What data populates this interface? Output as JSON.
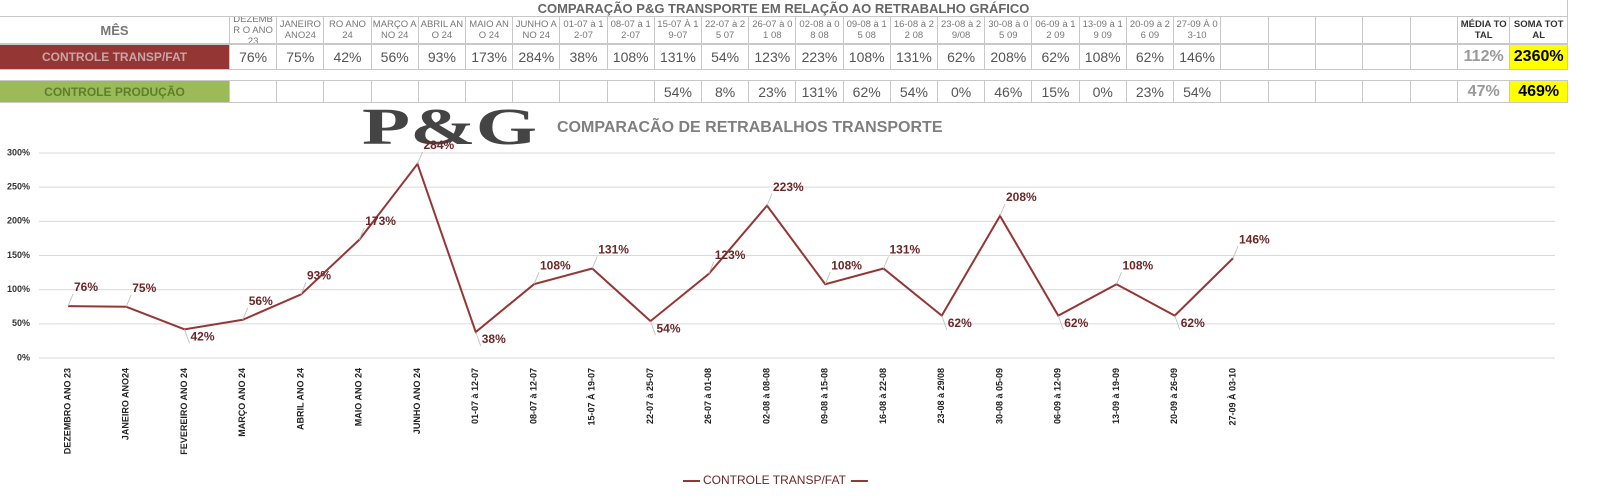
{
  "table": {
    "title": "COMPARAÇÃO P&G  TRANSPORTE EM RELAÇÃO AO RETRABALHO GRÁFICO",
    "corner": "MÊS",
    "columns": [
      "DEZEMBR O ANO 23",
      "JANEIRO ANO24",
      "RO ANO 24",
      "MARÇO ANO 24",
      "ABRIL ANO 24",
      "MAIO ANO 24",
      "JUNHO ANO 24",
      "01-07 à 12-07",
      "08-07 à 12-07",
      "15-07 À 19-07",
      "22-07 à 25 07",
      "26-07 à 01 08",
      "02-08 à 08 08",
      "09-08 à 15 08",
      "16-08 à 22 08",
      "23-08 à 29/08",
      "30-08 à 05 09",
      "06-09 à 12 09",
      "13-09 à 19 09",
      "20-09 à 26 09",
      "27-09 À 03-10",
      null,
      null,
      null,
      null,
      null,
      "MÉDIA TOTAL",
      "SOMA TOTAL"
    ],
    "rows": [
      {
        "label": "CONTROLE TRANSP/FAT",
        "cells": [
          "76%",
          "75%",
          "42%",
          "56%",
          "93%",
          "173%",
          "284%",
          "38%",
          "108%",
          "131%",
          "54%",
          "123%",
          "223%",
          "108%",
          "131%",
          "62%",
          "208%",
          "62%",
          "108%",
          "62%",
          "146%",
          null,
          null,
          null,
          null,
          null,
          "112%",
          "2360%"
        ]
      },
      {
        "label": "CONTROLE PRODUÇÃO",
        "cells": [
          null,
          null,
          null,
          null,
          null,
          null,
          null,
          null,
          null,
          "54%",
          "8%",
          "23%",
          "131%",
          "62%",
          "54%",
          "0%",
          "46%",
          "15%",
          "0%",
          "23%",
          "54%",
          null,
          null,
          null,
          null,
          null,
          "47%",
          "469%"
        ]
      }
    ]
  },
  "chart_data": {
    "type": "line",
    "logo": "P&G",
    "title": "COMPARACÃO DE RETRABALHOS TRANSPORTE",
    "categories": [
      "DEZEMBRO ANO 23",
      "JANEIRO ANO24",
      "FEVEREIRO ANO 24",
      "MARÇO ANO 24",
      "ABRIL ANO 24",
      "MAIO ANO 24",
      "JUNHO ANO 24",
      "01-07 à 12-07",
      "08-07 à 12-07",
      "15-07 À 19-07",
      "22-07 à 25-07",
      "26-07 à 01-08",
      "02-08 à 08-08",
      "09-08 à 15-08",
      "16-08 à 22-08",
      "23-08 à 29/08",
      "30-08 à 05-09",
      "06-09 à 12-09",
      "13-09 à 19-09",
      "20-09 à 26-09",
      "27-09 À 03-10"
    ],
    "series": [
      {
        "name": "CONTROLE TRANSP/FAT",
        "color": "#943634",
        "values": [
          76,
          75,
          42,
          56,
          93,
          173,
          284,
          38,
          108,
          131,
          54,
          123,
          223,
          108,
          131,
          62,
          208,
          62,
          108,
          62,
          146
        ],
        "value_labels": [
          "76%",
          "75%",
          "42%",
          "56%",
          "93%",
          "173%",
          "284%",
          "38%",
          "108%",
          "131%",
          "54%",
          "123%",
          "223%",
          "108%",
          "131%",
          "62%",
          "208%",
          "62%",
          "108%",
          "62%",
          "146%"
        ]
      }
    ],
    "ylim": [
      0,
      300
    ],
    "yticks": [
      {
        "value": 0,
        "label": "0%"
      },
      {
        "value": 50,
        "label": "50%"
      },
      {
        "value": 100,
        "label": "100%"
      },
      {
        "value": 150,
        "label": "150%"
      },
      {
        "value": 200,
        "label": "200%"
      },
      {
        "value": 250,
        "label": "250%"
      },
      {
        "value": 300,
        "label": "300%"
      }
    ],
    "grid": true,
    "legend": "bottom"
  }
}
